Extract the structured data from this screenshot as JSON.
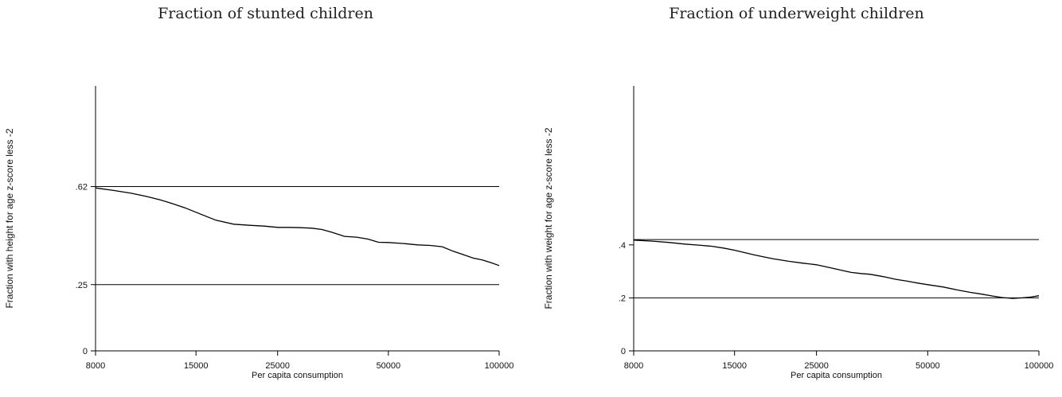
{
  "chart_data": [
    {
      "type": "line",
      "title": "Fraction of stunted children",
      "xlabel": "Per capita consumption",
      "ylabel": "Fraction with height for age z-score less -2",
      "x_scale": "log",
      "xlim": [
        8000,
        100000
      ],
      "ylim": [
        0,
        1
      ],
      "xticks": [
        8000,
        15000,
        25000,
        50000,
        100000
      ],
      "xtick_labels": [
        "8000",
        "15000",
        "25000",
        "50000",
        "100000"
      ],
      "yticks": [
        0,
        0.25,
        0.62
      ],
      "ytick_labels": [
        "0",
        ".25",
        ".62"
      ],
      "reference_lines": [
        0.62,
        0.25
      ],
      "grid": false,
      "series": [
        {
          "x": [
            8000,
            9000,
            10000,
            11000,
            12000,
            13000,
            14000,
            15000,
            17000,
            19000,
            21000,
            23000,
            25000,
            27000,
            29000,
            31000,
            33000,
            35000,
            38000,
            41000,
            44000,
            47000,
            50000,
            55000,
            60000,
            65000,
            70000,
            75000,
            80000,
            85000,
            90000,
            95000,
            100000
          ],
          "values": [
            0.615,
            0.605,
            0.595,
            0.583,
            0.57,
            0.555,
            0.54,
            0.523,
            0.493,
            0.478,
            0.474,
            0.471,
            0.466,
            0.466,
            0.465,
            0.463,
            0.458,
            0.448,
            0.432,
            0.429,
            0.422,
            0.41,
            0.409,
            0.405,
            0.4,
            0.398,
            0.393,
            0.376,
            0.363,
            0.35,
            0.343,
            0.333,
            0.322
          ]
        }
      ]
    },
    {
      "type": "line",
      "title": "Fraction of underweight children",
      "xlabel": "Per capita consumption",
      "ylabel": "Fraction with weight for age z-score less -2",
      "x_scale": "log",
      "xlim": [
        8000,
        100000
      ],
      "ylim": [
        0,
        1
      ],
      "xticks": [
        8000,
        15000,
        25000,
        50000,
        100000
      ],
      "xtick_labels": [
        "8000",
        "15000",
        "25000",
        "50000",
        "100000"
      ],
      "yticks": [
        0,
        0.2,
        0.4
      ],
      "ytick_labels": [
        "0",
        ".2",
        ".4"
      ],
      "reference_lines": [
        0.42,
        0.2
      ],
      "grid": false,
      "series": [
        {
          "x": [
            8000,
            9000,
            10000,
            11000,
            12000,
            13000,
            14000,
            15000,
            17000,
            19000,
            21000,
            23000,
            25000,
            27000,
            29000,
            31000,
            33000,
            35000,
            38000,
            41000,
            44000,
            47000,
            50000,
            55000,
            60000,
            65000,
            70000,
            75000,
            80000,
            85000,
            90000,
            95000,
            100000
          ],
          "values": [
            0.418,
            0.414,
            0.409,
            0.403,
            0.399,
            0.395,
            0.388,
            0.38,
            0.362,
            0.348,
            0.338,
            0.331,
            0.325,
            0.315,
            0.305,
            0.296,
            0.292,
            0.289,
            0.28,
            0.27,
            0.263,
            0.256,
            0.25,
            0.241,
            0.23,
            0.221,
            0.214,
            0.207,
            0.201,
            0.198,
            0.2,
            0.203,
            0.208
          ]
        }
      ]
    }
  ]
}
